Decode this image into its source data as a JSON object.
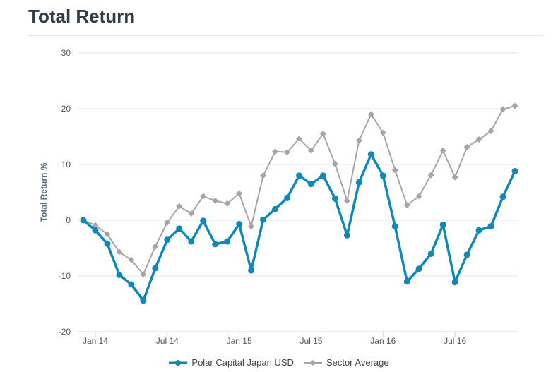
{
  "title": "Total Return",
  "chart_data": {
    "type": "line",
    "ylabel": "Total Return %",
    "xlabel": "",
    "ylim": [
      -20,
      30
    ],
    "yticks": [
      30,
      20,
      10,
      0,
      -10,
      -20
    ],
    "xtick_labels": [
      "Jan 14",
      "Jul 14",
      "Jan 15",
      "Jul 15",
      "Jan 16",
      "Jul 16"
    ],
    "xtick_index": [
      1,
      7,
      13,
      19,
      25,
      31
    ],
    "x": [
      "2013-12",
      "2014-01",
      "2014-02",
      "2014-03",
      "2014-04",
      "2014-05",
      "2014-06",
      "2014-07",
      "2014-08",
      "2014-09",
      "2014-10",
      "2014-11",
      "2014-12",
      "2015-01",
      "2015-02",
      "2015-03",
      "2015-04",
      "2015-05",
      "2015-06",
      "2015-07",
      "2015-08",
      "2015-09",
      "2015-10",
      "2015-11",
      "2015-12",
      "2016-01",
      "2016-02",
      "2016-03",
      "2016-04",
      "2016-05",
      "2016-06",
      "2016-07",
      "2016-08",
      "2016-09",
      "2016-10",
      "2016-11",
      "2016-12"
    ],
    "series": [
      {
        "name": "Polar Capital Japan USD",
        "color": "#0f87b8",
        "marker": "circle",
        "values": [
          0,
          -1.8,
          -4.2,
          -9.8,
          -11.5,
          -14.4,
          -8.6,
          -3.5,
          -1.5,
          -3.8,
          -0.1,
          -4.3,
          -3.8,
          -0.7,
          -9.0,
          0.1,
          2.0,
          4.0,
          8.0,
          6.5,
          8.0,
          3.9,
          -2.7,
          6.8,
          11.8,
          8.0,
          -1.1,
          -11.0,
          -8.7,
          -6.0,
          -0.8,
          -11.1,
          -6.2,
          -1.8,
          -1.1,
          4.2,
          8.8
        ]
      },
      {
        "name": "Sector Average",
        "color": "#a5a5a5",
        "marker": "diamond",
        "values": [
          0,
          -0.9,
          -2.5,
          -5.7,
          -7.1,
          -9.7,
          -4.7,
          -0.4,
          2.5,
          1.2,
          4.3,
          3.5,
          3.0,
          4.8,
          -1.1,
          8.0,
          12.3,
          12.2,
          14.6,
          12.5,
          15.5,
          10.1,
          3.5,
          14.3,
          19.0,
          15.7,
          9.0,
          2.7,
          4.3,
          8.1,
          12.5,
          7.7,
          13.1,
          14.5,
          16.0,
          19.9,
          20.5
        ]
      }
    ],
    "grid": true,
    "legend_position": "bottom"
  }
}
